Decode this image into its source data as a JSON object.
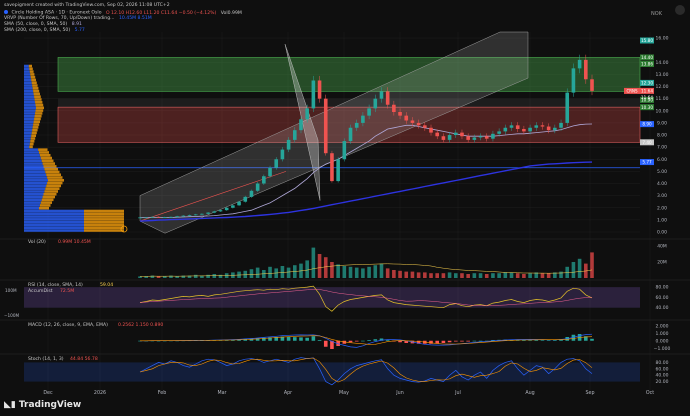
{
  "header": {
    "author_line": "savepigment created with TradingView.com, Sep 02, 2026 11:08 UTC+2",
    "symbol_line": "Circle Holding ASA · 1D · Euronext Oslo",
    "ohlc": "O 12.10 H12.60 L11.20 C11.64 −0.50 (−4.12%)",
    "vol_small": "Vol0.99M",
    "vrvp_line": "VRVP (Number Of Rows, 70, Up/Down) trading...",
    "vrvp_values": "10.45M  8.51M",
    "sma1_line": "SMA (50, close, 0, SMA, 50)",
    "sma1_value": "8.91",
    "sma2_line": "SMA (200, close, 0, SMA, 50)",
    "sma2_value": "5.77"
  },
  "ticker_label": "NOK",
  "price_tags": [
    {
      "label": "15.80",
      "price": 15.8,
      "color": "#26a69a"
    },
    {
      "label": "14.40",
      "price": 14.4,
      "color": "#2e7d32"
    },
    {
      "label": "13.86",
      "price": 13.86,
      "color": "#2e7d32"
    },
    {
      "label": "12.30",
      "price": 12.3,
      "color": "#26a69a"
    },
    {
      "label": "11.64",
      "price": 11.64,
      "color": "#ef5350"
    },
    {
      "label": "10.90",
      "price": 10.9,
      "color": "#2e7d32"
    },
    {
      "label": "10.30",
      "price": 10.3,
      "color": "#2e7d32"
    },
    {
      "label": "8.90",
      "price": 8.9,
      "color": "#2962ff"
    },
    {
      "label": "7.40",
      "price": 7.4,
      "color": "#c8c8c8"
    },
    {
      "label": "5.77",
      "price": 5.77,
      "color": "#2962ff"
    }
  ],
  "current_tag": {
    "label": "CRNS",
    "value": "11.64"
  },
  "colors": {
    "up": "#26a69a",
    "down": "#ef5350",
    "sma50": "#b0a8d8",
    "sma200": "#2d33e0",
    "grid": "#1e1e1e"
  },
  "chart_data": [
    {
      "type": "line",
      "name": "price-panel",
      "x_ticks": [
        "Dec",
        "2026",
        "Feb",
        "Mar",
        "Apr",
        "May",
        "Jun",
        "Jul",
        "Aug",
        "Sep",
        "Oct"
      ],
      "y_ticks": [
        0,
        1,
        2,
        3,
        4,
        5,
        6,
        7,
        8,
        9,
        10,
        11,
        12,
        13,
        14,
        16
      ],
      "ylim": [
        0,
        16.5
      ],
      "close": [
        1.2,
        1.2,
        1.25,
        1.2,
        1.22,
        1.25,
        1.3,
        1.35,
        1.4,
        1.45,
        1.5,
        1.6,
        1.7,
        1.8,
        2.0,
        2.2,
        2.5,
        2.9,
        3.4,
        4.0,
        4.6,
        5.3,
        6.0,
        6.8,
        7.6,
        8.4,
        9.3,
        10.2,
        12.5,
        11.0,
        6.5,
        4.2,
        6.0,
        7.5,
        8.6,
        9.0,
        9.6,
        10.2,
        11.0,
        11.6,
        10.5,
        9.9,
        9.6,
        9.2,
        9.0,
        8.8,
        8.6,
        8.2,
        7.9,
        7.6,
        8.0,
        8.2,
        7.9,
        7.6,
        7.8,
        7.9,
        7.7,
        8.1,
        8.3,
        8.6,
        8.8,
        8.5,
        8.3,
        8.6,
        8.8,
        8.7,
        8.4,
        8.6,
        9.0,
        11.5,
        13.5,
        14.2,
        12.6,
        11.64
      ],
      "sma50": [
        1.2,
        1.2,
        1.2,
        1.2,
        1.2,
        1.2,
        1.22,
        1.24,
        1.26,
        1.28,
        1.3,
        1.32,
        1.35,
        1.4,
        1.45,
        1.5,
        1.6,
        1.7,
        1.8,
        2.0,
        2.2,
        2.4,
        2.7,
        3.0,
        3.3,
        3.6,
        4.0,
        4.4,
        4.9,
        5.3,
        5.6,
        5.8,
        6.0,
        6.3,
        6.6,
        6.9,
        7.2,
        7.5,
        7.9,
        8.2,
        8.5,
        8.6,
        8.7,
        8.8,
        8.8,
        8.7,
        8.6,
        8.5,
        8.4,
        8.3,
        8.2,
        8.1,
        8.0,
        7.9,
        7.9,
        7.9,
        7.9,
        7.9,
        7.95,
        8.0,
        8.05,
        8.1,
        8.1,
        8.15,
        8.2,
        8.25,
        8.3,
        8.35,
        8.45,
        8.6,
        8.75,
        8.85,
        8.9,
        8.91
      ],
      "sma200": [
        0.9,
        0.92,
        0.95,
        0.98,
        1.0,
        1.02,
        1.04,
        1.06,
        1.08,
        1.1,
        1.12,
        1.14,
        1.16,
        1.18,
        1.2,
        1.22,
        1.25,
        1.28,
        1.32,
        1.36,
        1.4,
        1.45,
        1.5,
        1.56,
        1.62,
        1.7,
        1.78,
        1.86,
        1.95,
        2.05,
        2.15,
        2.25,
        2.35,
        2.45,
        2.55,
        2.65,
        2.75,
        2.85,
        2.95,
        3.05,
        3.15,
        3.25,
        3.35,
        3.45,
        3.55,
        3.65,
        3.75,
        3.85,
        3.95,
        4.05,
        4.15,
        4.25,
        4.35,
        4.45,
        4.55,
        4.65,
        4.75,
        4.85,
        4.95,
        5.05,
        5.15,
        5.25,
        5.35,
        5.45,
        5.5,
        5.55,
        5.6,
        5.63,
        5.66,
        5.69,
        5.72,
        5.74,
        5.76,
        5.77
      ]
    },
    {
      "type": "bar",
      "name": "volume",
      "title": "Vol (20)",
      "values_label": "0.99M  10.45M",
      "y_ticks": [
        "40M",
        "20M"
      ],
      "values": [
        2,
        2,
        3,
        2,
        2,
        3,
        2,
        3,
        3,
        4,
        3,
        4,
        5,
        4,
        6,
        7,
        8,
        9,
        11,
        13,
        10,
        14,
        12,
        15,
        13,
        16,
        18,
        22,
        38,
        30,
        26,
        20,
        17,
        15,
        14,
        13,
        12,
        14,
        16,
        18,
        12,
        10,
        9,
        8,
        8,
        7,
        7,
        6,
        6,
        6,
        7,
        6,
        6,
        5,
        6,
        6,
        5,
        6,
        6,
        7,
        7,
        6,
        5,
        6,
        7,
        6,
        6,
        7,
        8,
        14,
        20,
        24,
        18,
        32
      ]
    },
    {
      "type": "line",
      "name": "rsi",
      "title": "RSI (14, close, SMA, 14)",
      "value": "59.04",
      "sub_title": "AccumDist",
      "sub_value": "72.5M",
      "left_ticks": [
        "100M",
        "−100M"
      ],
      "y_ticks": [
        "80.00",
        "60.00",
        "40.00"
      ],
      "ylim": [
        20,
        90
      ],
      "values": [
        50,
        52,
        55,
        54,
        56,
        58,
        60,
        62,
        61,
        63,
        64,
        62,
        65,
        66,
        68,
        70,
        72,
        73,
        74,
        75,
        74,
        76,
        75,
        77,
        76,
        78,
        79,
        80,
        82,
        66,
        42,
        33,
        45,
        52,
        56,
        58,
        60,
        62,
        64,
        65,
        55,
        50,
        48,
        46,
        45,
        44,
        43,
        42,
        41,
        40,
        46,
        48,
        44,
        42,
        45,
        46,
        44,
        49,
        51,
        54,
        56,
        52,
        50,
        54,
        56,
        55,
        52,
        55,
        59,
        72,
        78,
        76,
        65,
        59
      ]
    },
    {
      "type": "bar",
      "name": "macd",
      "title": "MACD (12, 26, close, 9, EMA, EMA)",
      "values_label": "0.2562  1.150  0.890",
      "y_ticks": [
        "2.000",
        "1.000",
        "0.000",
        "−1.000"
      ],
      "ylim": [
        -1.5,
        2.5
      ],
      "values": [
        0,
        0,
        0.01,
        0,
        0.01,
        0.02,
        0.02,
        0.03,
        0.04,
        0.05,
        0.05,
        0.06,
        0.08,
        0.1,
        0.12,
        0.15,
        0.2,
        0.25,
        0.3,
        0.35,
        0.4,
        0.45,
        0.5,
        0.55,
        0.5,
        0.48,
        0.45,
        0.4,
        0.6,
        0.1,
        -0.8,
        -1.1,
        -0.7,
        -0.4,
        -0.2,
        -0.1,
        0,
        0.1,
        0.2,
        0.3,
        0.1,
        -0.1,
        -0.2,
        -0.3,
        -0.35,
        -0.4,
        -0.4,
        -0.4,
        -0.35,
        -0.3,
        -0.2,
        -0.1,
        -0.1,
        -0.1,
        0,
        0,
        0,
        0.1,
        0.12,
        0.15,
        0.15,
        0.1,
        0.05,
        0.08,
        0.1,
        0.08,
        0.05,
        0.1,
        0.2,
        0.5,
        0.8,
        0.9,
        0.6,
        0.26
      ]
    },
    {
      "type": "line",
      "name": "stoch",
      "title": "Stoch (14, 1, 3)",
      "values_label": "44.84  56.78",
      "y_ticks": [
        "80.00",
        "60.00",
        "40.00",
        "20.00"
      ],
      "ylim": [
        0,
        100
      ],
      "values": [
        50,
        60,
        70,
        80,
        75,
        85,
        80,
        70,
        65,
        75,
        85,
        90,
        88,
        80,
        70,
        75,
        85,
        90,
        92,
        88,
        80,
        85,
        90,
        85,
        80,
        90,
        95,
        92,
        94,
        60,
        20,
        10,
        25,
        45,
        60,
        70,
        75,
        80,
        85,
        88,
        60,
        40,
        30,
        25,
        20,
        18,
        22,
        30,
        25,
        20,
        40,
        55,
        35,
        25,
        40,
        50,
        30,
        55,
        70,
        80,
        85,
        60,
        40,
        55,
        70,
        65,
        45,
        60,
        80,
        90,
        92,
        85,
        60,
        45
      ]
    }
  ]
}
